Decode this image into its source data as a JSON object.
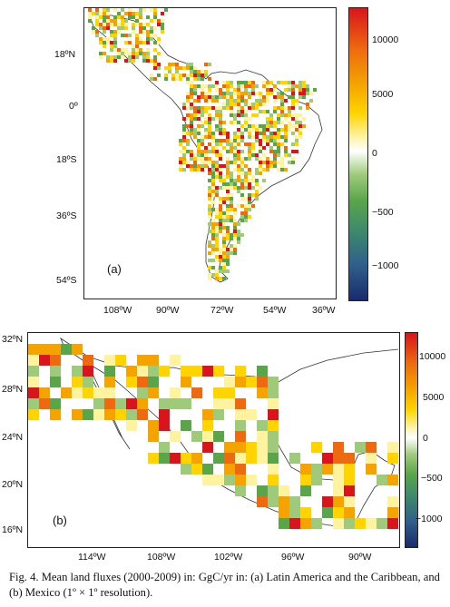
{
  "figure": {
    "caption": "Fig. 4. Mean land fluxes (2000-2009) in: GgC/yr in: (a) Latin America and the Caribbean, and (b) Mexico (1º × 1º resolution)."
  },
  "panel_a": {
    "letter": "(a)",
    "lat_labels": [
      "18ºN",
      "0º",
      "18ºS",
      "36ºS",
      "54ºS"
    ],
    "lon_labels": [
      "108ºW",
      "90ºW",
      "72ºW",
      "54ºW",
      "36ºW"
    ],
    "colorbar_labels": [
      "10000",
      "5000",
      "0",
      "−500",
      "−1000"
    ]
  },
  "panel_b": {
    "letter": "(b)",
    "lat_labels": [
      "32ºN",
      "28ºN",
      "24ºN",
      "20ºN",
      "16ºN"
    ],
    "lon_labels": [
      "114ºW",
      "108ºW",
      "102ºW",
      "96ºW",
      "90ºW"
    ],
    "colorbar_labels": [
      "10000",
      "5000",
      "0",
      "−500",
      "−1000"
    ]
  },
  "colors": {
    "scale": [
      "#1a2a6c",
      "#2f5f8a",
      "#3f8a6a",
      "#5aa54a",
      "#9fca7c",
      "#ffffff",
      "#fff3a0",
      "#ffd400",
      "#f5a300",
      "#ee6a10",
      "#d8141c"
    ]
  }
}
